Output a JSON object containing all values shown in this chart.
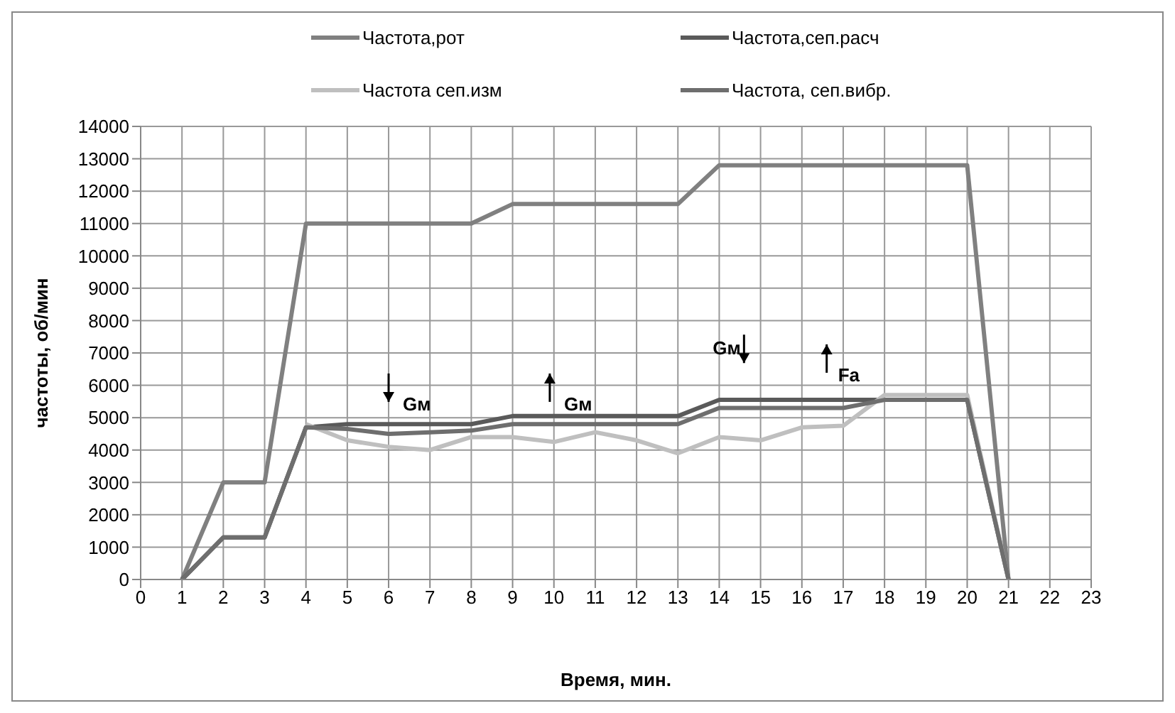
{
  "chart_data": {
    "type": "line",
    "xlabel": "Время, мин.",
    "ylabel": "частоты, об/мин",
    "x": [
      1,
      2,
      3,
      4,
      5,
      6,
      7,
      8,
      9,
      10,
      11,
      12,
      13,
      14,
      15,
      16,
      17,
      18,
      19,
      20,
      21
    ],
    "series": [
      {
        "name": "Частота,рот",
        "color": "#808080",
        "values": [
          0,
          3000,
          3000,
          11000,
          11000,
          11000,
          11000,
          11000,
          11600,
          11600,
          11600,
          11600,
          11600,
          12800,
          12800,
          12800,
          12800,
          12800,
          12800,
          12800,
          0
        ]
      },
      {
        "name": "Частота,сеп.расч",
        "color": "#5a5a5a",
        "values": [
          0,
          1300,
          1300,
          4700,
          4800,
          4800,
          4800,
          4800,
          5050,
          5050,
          5050,
          5050,
          5050,
          5550,
          5550,
          5550,
          5550,
          5550,
          5550,
          5550,
          0
        ]
      },
      {
        "name": "Частота сеп.изм",
        "color": "#bfbfbf",
        "values": [
          null,
          null,
          null,
          4800,
          4300,
          4100,
          4000,
          4400,
          4400,
          4250,
          4550,
          4300,
          3900,
          4400,
          4300,
          4700,
          4750,
          5700,
          5700,
          5700,
          0
        ]
      },
      {
        "name": "Частота, сеп.вибр.",
        "color": "#6e6e6e",
        "values": [
          0,
          1300,
          1300,
          4700,
          4650,
          4500,
          4550,
          4600,
          4800,
          4800,
          4800,
          4800,
          4800,
          5300,
          5300,
          5300,
          5300,
          5550,
          5550,
          5550,
          0
        ]
      }
    ],
    "xlim": [
      0,
      23
    ],
    "xticks": [
      0,
      1,
      2,
      3,
      4,
      5,
      6,
      7,
      8,
      9,
      10,
      11,
      12,
      13,
      14,
      15,
      16,
      17,
      18,
      19,
      20,
      21,
      22,
      23
    ],
    "ylim": [
      0,
      14000
    ],
    "yticks": [
      0,
      1000,
      2000,
      3000,
      4000,
      5000,
      6000,
      7000,
      8000,
      9000,
      10000,
      11000,
      12000,
      13000,
      14000
    ],
    "grid": true,
    "legend": "top",
    "marker": "none",
    "line_style": "solid",
    "annotations": [
      "Gм",
      "Gм",
      "Gм",
      "Fa"
    ]
  }
}
